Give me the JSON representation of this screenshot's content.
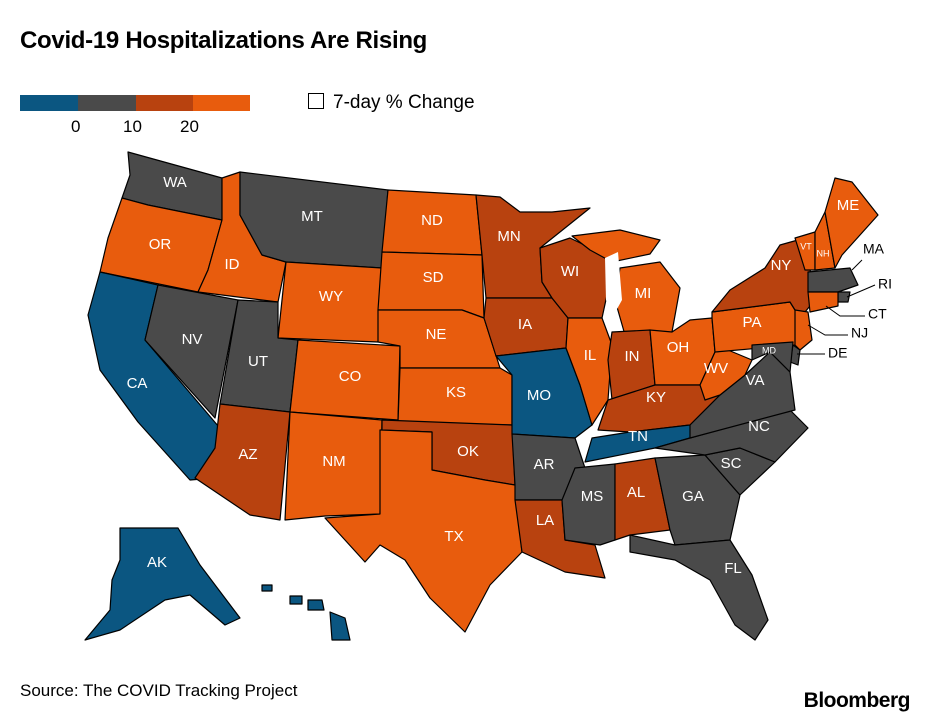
{
  "title": "Covid-19 Hospitalizations Are Rising",
  "legend": {
    "label": "7-day % Change",
    "ticks": [
      "0",
      "10",
      "20"
    ],
    "colors": [
      "#0b5681",
      "#4a4a4a",
      "#b8420f",
      "#e85c0d"
    ]
  },
  "colors": {
    "blue": "#0b5681",
    "gray": "#4a4a4a",
    "dark_orange": "#b8420f",
    "orange": "#e85c0d"
  },
  "states": {
    "WA": {
      "label": "WA",
      "bin": "gray"
    },
    "OR": {
      "label": "OR",
      "bin": "orange"
    },
    "CA": {
      "label": "CA",
      "bin": "blue"
    },
    "ID": {
      "label": "ID",
      "bin": "orange"
    },
    "NV": {
      "label": "NV",
      "bin": "gray"
    },
    "MT": {
      "label": "MT",
      "bin": "gray"
    },
    "WY": {
      "label": "WY",
      "bin": "orange"
    },
    "UT": {
      "label": "UT",
      "bin": "gray"
    },
    "AZ": {
      "label": "AZ",
      "bin": "dark_orange"
    },
    "CO": {
      "label": "CO",
      "bin": "orange"
    },
    "NM": {
      "label": "NM",
      "bin": "orange"
    },
    "ND": {
      "label": "ND",
      "bin": "orange"
    },
    "SD": {
      "label": "SD",
      "bin": "orange"
    },
    "NE": {
      "label": "NE",
      "bin": "orange"
    },
    "KS": {
      "label": "KS",
      "bin": "orange"
    },
    "OK": {
      "label": "OK",
      "bin": "dark_orange"
    },
    "TX": {
      "label": "TX",
      "bin": "orange"
    },
    "MN": {
      "label": "MN",
      "bin": "dark_orange"
    },
    "IA": {
      "label": "IA",
      "bin": "dark_orange"
    },
    "MO": {
      "label": "MO",
      "bin": "blue"
    },
    "AR": {
      "label": "AR",
      "bin": "gray"
    },
    "LA": {
      "label": "LA",
      "bin": "dark_orange"
    },
    "WI": {
      "label": "WI",
      "bin": "dark_orange"
    },
    "IL": {
      "label": "IL",
      "bin": "orange"
    },
    "MI": {
      "label": "MI",
      "bin": "orange"
    },
    "IN": {
      "label": "IN",
      "bin": "dark_orange"
    },
    "OH": {
      "label": "OH",
      "bin": "orange"
    },
    "KY": {
      "label": "KY",
      "bin": "dark_orange"
    },
    "TN": {
      "label": "TN",
      "bin": "blue"
    },
    "MS": {
      "label": "MS",
      "bin": "gray"
    },
    "AL": {
      "label": "AL",
      "bin": "dark_orange"
    },
    "GA": {
      "label": "GA",
      "bin": "gray"
    },
    "FL": {
      "label": "FL",
      "bin": "gray"
    },
    "SC": {
      "label": "SC",
      "bin": "gray"
    },
    "NC": {
      "label": "NC",
      "bin": "gray"
    },
    "VA": {
      "label": "VA",
      "bin": "gray"
    },
    "WV": {
      "label": "WV",
      "bin": "orange"
    },
    "PA": {
      "label": "PA",
      "bin": "orange"
    },
    "NY": {
      "label": "NY",
      "bin": "dark_orange"
    },
    "VT": {
      "label": "VT",
      "bin": "orange"
    },
    "NH": {
      "label": "NH",
      "bin": "orange"
    },
    "ME": {
      "label": "ME",
      "bin": "orange"
    },
    "MA": {
      "label": "MA",
      "bin": "gray"
    },
    "RI": {
      "label": "RI",
      "bin": "gray"
    },
    "CT": {
      "label": "CT",
      "bin": "orange"
    },
    "NJ": {
      "label": "NJ",
      "bin": "orange"
    },
    "DE": {
      "label": "DE",
      "bin": "gray"
    },
    "MD": {
      "label": "MD",
      "bin": "gray"
    },
    "AK": {
      "label": "AK",
      "bin": "blue"
    },
    "HI": {
      "label": "",
      "bin": "blue"
    }
  },
  "source": "Source: The COVID Tracking Project",
  "brand": "Bloomberg"
}
